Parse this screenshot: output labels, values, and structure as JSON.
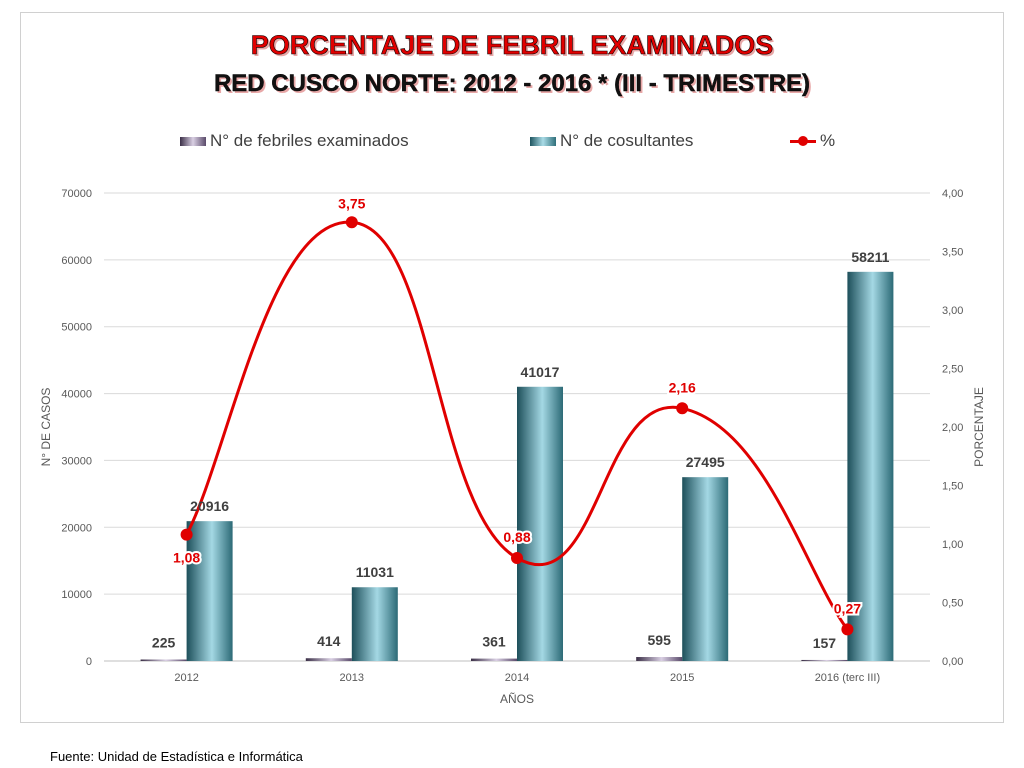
{
  "title_line1": "PORCENTAJE DE FEBRIL EXAMINADOS",
  "title_line2": "RED CUSCO NORTE: 2012 - 2016 * (III - TRIMESTRE)",
  "source": "Fuente: Unidad de Estadística e Informática",
  "chart_data": {
    "type": "bar",
    "categories": [
      "2012",
      "2013",
      "2014",
      "2015",
      "2016 (terc III)"
    ],
    "series": [
      {
        "name": "N° de febriles examinados",
        "type": "bar",
        "values": [
          225,
          414,
          361,
          595,
          157
        ],
        "labels": [
          "225",
          "414",
          "361",
          "595",
          "157"
        ],
        "color": "#6a5a7a"
      },
      {
        "name": "N° de cosultantes",
        "type": "bar",
        "values": [
          20916,
          11031,
          41017,
          27495,
          58211
        ],
        "labels": [
          "20916",
          "11031",
          "41017",
          "27495",
          "58211"
        ],
        "color": "#3f7f8a"
      },
      {
        "name": "%",
        "type": "line",
        "axis": "right",
        "values": [
          1.08,
          3.75,
          0.88,
          2.16,
          0.27
        ],
        "labels": [
          "1,08",
          "3,75",
          "0,88",
          "2,16",
          "0,27"
        ],
        "color": "#e00000"
      }
    ],
    "xlabel": "AÑOS",
    "ylabel": "N° DE CASOS",
    "y2label": "PORCENTAJE",
    "ylim": [
      0,
      70000
    ],
    "y2lim": [
      0,
      4
    ],
    "yticks": [
      "0",
      "10000",
      "20000",
      "30000",
      "40000",
      "50000",
      "60000",
      "70000"
    ],
    "y2ticks": [
      "0,00",
      "0,50",
      "1,00",
      "1,50",
      "2,00",
      "2,50",
      "3,00",
      "3,50",
      "4,00"
    ],
    "grid": true,
    "legend": "top"
  }
}
